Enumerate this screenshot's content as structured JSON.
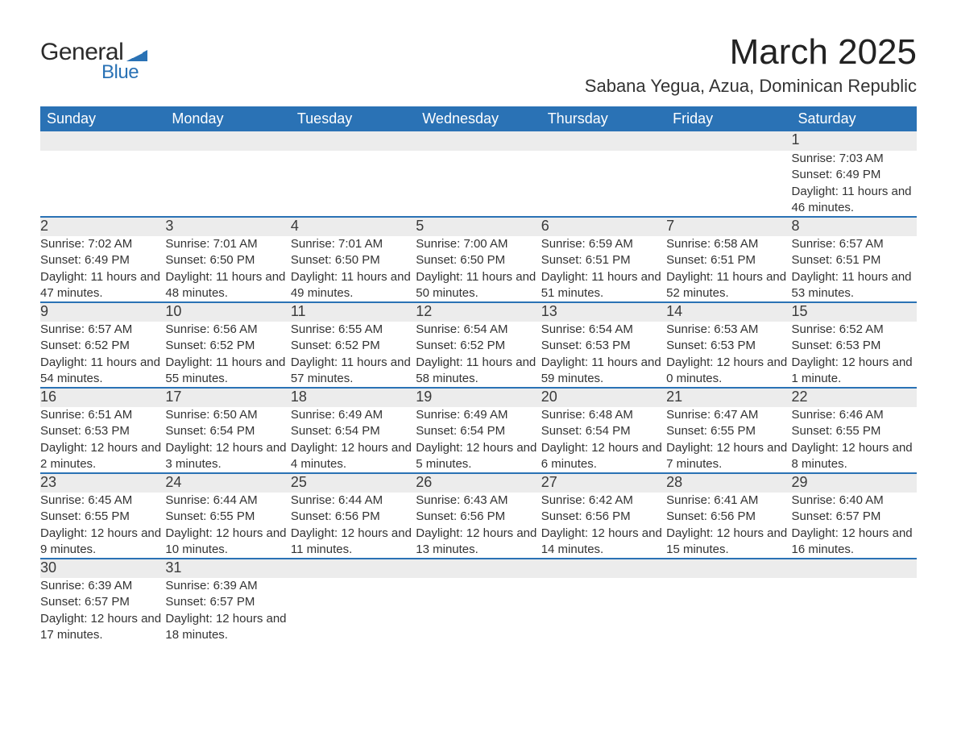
{
  "logo": {
    "text_general": "General",
    "text_blue": "Blue",
    "flag_color": "#2a72b5"
  },
  "title": "March 2025",
  "location": "Sabana Yegua, Azua, Dominican Republic",
  "colors": {
    "header_bg": "#2a72b5",
    "header_text": "#ffffff",
    "daynum_bg": "#ececec",
    "border": "#2a72b5",
    "body_text": "#333333"
  },
  "weekdays": [
    "Sunday",
    "Monday",
    "Tuesday",
    "Wednesday",
    "Thursday",
    "Friday",
    "Saturday"
  ],
  "weeks": [
    [
      null,
      null,
      null,
      null,
      null,
      null,
      {
        "n": "1",
        "sunrise": "Sunrise: 7:03 AM",
        "sunset": "Sunset: 6:49 PM",
        "daylight": "Daylight: 11 hours and 46 minutes."
      }
    ],
    [
      {
        "n": "2",
        "sunrise": "Sunrise: 7:02 AM",
        "sunset": "Sunset: 6:49 PM",
        "daylight": "Daylight: 11 hours and 47 minutes."
      },
      {
        "n": "3",
        "sunrise": "Sunrise: 7:01 AM",
        "sunset": "Sunset: 6:50 PM",
        "daylight": "Daylight: 11 hours and 48 minutes."
      },
      {
        "n": "4",
        "sunrise": "Sunrise: 7:01 AM",
        "sunset": "Sunset: 6:50 PM",
        "daylight": "Daylight: 11 hours and 49 minutes."
      },
      {
        "n": "5",
        "sunrise": "Sunrise: 7:00 AM",
        "sunset": "Sunset: 6:50 PM",
        "daylight": "Daylight: 11 hours and 50 minutes."
      },
      {
        "n": "6",
        "sunrise": "Sunrise: 6:59 AM",
        "sunset": "Sunset: 6:51 PM",
        "daylight": "Daylight: 11 hours and 51 minutes."
      },
      {
        "n": "7",
        "sunrise": "Sunrise: 6:58 AM",
        "sunset": "Sunset: 6:51 PM",
        "daylight": "Daylight: 11 hours and 52 minutes."
      },
      {
        "n": "8",
        "sunrise": "Sunrise: 6:57 AM",
        "sunset": "Sunset: 6:51 PM",
        "daylight": "Daylight: 11 hours and 53 minutes."
      }
    ],
    [
      {
        "n": "9",
        "sunrise": "Sunrise: 6:57 AM",
        "sunset": "Sunset: 6:52 PM",
        "daylight": "Daylight: 11 hours and 54 minutes."
      },
      {
        "n": "10",
        "sunrise": "Sunrise: 6:56 AM",
        "sunset": "Sunset: 6:52 PM",
        "daylight": "Daylight: 11 hours and 55 minutes."
      },
      {
        "n": "11",
        "sunrise": "Sunrise: 6:55 AM",
        "sunset": "Sunset: 6:52 PM",
        "daylight": "Daylight: 11 hours and 57 minutes."
      },
      {
        "n": "12",
        "sunrise": "Sunrise: 6:54 AM",
        "sunset": "Sunset: 6:52 PM",
        "daylight": "Daylight: 11 hours and 58 minutes."
      },
      {
        "n": "13",
        "sunrise": "Sunrise: 6:54 AM",
        "sunset": "Sunset: 6:53 PM",
        "daylight": "Daylight: 11 hours and 59 minutes."
      },
      {
        "n": "14",
        "sunrise": "Sunrise: 6:53 AM",
        "sunset": "Sunset: 6:53 PM",
        "daylight": "Daylight: 12 hours and 0 minutes."
      },
      {
        "n": "15",
        "sunrise": "Sunrise: 6:52 AM",
        "sunset": "Sunset: 6:53 PM",
        "daylight": "Daylight: 12 hours and 1 minute."
      }
    ],
    [
      {
        "n": "16",
        "sunrise": "Sunrise: 6:51 AM",
        "sunset": "Sunset: 6:53 PM",
        "daylight": "Daylight: 12 hours and 2 minutes."
      },
      {
        "n": "17",
        "sunrise": "Sunrise: 6:50 AM",
        "sunset": "Sunset: 6:54 PM",
        "daylight": "Daylight: 12 hours and 3 minutes."
      },
      {
        "n": "18",
        "sunrise": "Sunrise: 6:49 AM",
        "sunset": "Sunset: 6:54 PM",
        "daylight": "Daylight: 12 hours and 4 minutes."
      },
      {
        "n": "19",
        "sunrise": "Sunrise: 6:49 AM",
        "sunset": "Sunset: 6:54 PM",
        "daylight": "Daylight: 12 hours and 5 minutes."
      },
      {
        "n": "20",
        "sunrise": "Sunrise: 6:48 AM",
        "sunset": "Sunset: 6:54 PM",
        "daylight": "Daylight: 12 hours and 6 minutes."
      },
      {
        "n": "21",
        "sunrise": "Sunrise: 6:47 AM",
        "sunset": "Sunset: 6:55 PM",
        "daylight": "Daylight: 12 hours and 7 minutes."
      },
      {
        "n": "22",
        "sunrise": "Sunrise: 6:46 AM",
        "sunset": "Sunset: 6:55 PM",
        "daylight": "Daylight: 12 hours and 8 minutes."
      }
    ],
    [
      {
        "n": "23",
        "sunrise": "Sunrise: 6:45 AM",
        "sunset": "Sunset: 6:55 PM",
        "daylight": "Daylight: 12 hours and 9 minutes."
      },
      {
        "n": "24",
        "sunrise": "Sunrise: 6:44 AM",
        "sunset": "Sunset: 6:55 PM",
        "daylight": "Daylight: 12 hours and 10 minutes."
      },
      {
        "n": "25",
        "sunrise": "Sunrise: 6:44 AM",
        "sunset": "Sunset: 6:56 PM",
        "daylight": "Daylight: 12 hours and 11 minutes."
      },
      {
        "n": "26",
        "sunrise": "Sunrise: 6:43 AM",
        "sunset": "Sunset: 6:56 PM",
        "daylight": "Daylight: 12 hours and 13 minutes."
      },
      {
        "n": "27",
        "sunrise": "Sunrise: 6:42 AM",
        "sunset": "Sunset: 6:56 PM",
        "daylight": "Daylight: 12 hours and 14 minutes."
      },
      {
        "n": "28",
        "sunrise": "Sunrise: 6:41 AM",
        "sunset": "Sunset: 6:56 PM",
        "daylight": "Daylight: 12 hours and 15 minutes."
      },
      {
        "n": "29",
        "sunrise": "Sunrise: 6:40 AM",
        "sunset": "Sunset: 6:57 PM",
        "daylight": "Daylight: 12 hours and 16 minutes."
      }
    ],
    [
      {
        "n": "30",
        "sunrise": "Sunrise: 6:39 AM",
        "sunset": "Sunset: 6:57 PM",
        "daylight": "Daylight: 12 hours and 17 minutes."
      },
      {
        "n": "31",
        "sunrise": "Sunrise: 6:39 AM",
        "sunset": "Sunset: 6:57 PM",
        "daylight": "Daylight: 12 hours and 18 minutes."
      },
      null,
      null,
      null,
      null,
      null
    ]
  ]
}
